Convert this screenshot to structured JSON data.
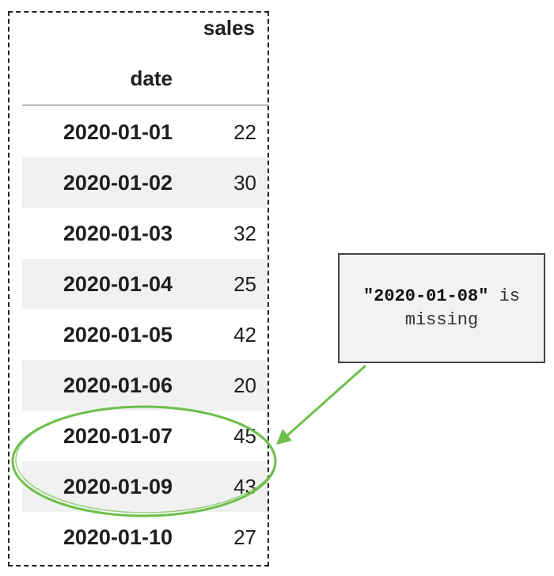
{
  "table": {
    "column_header": "sales",
    "index_header": "date",
    "rows": [
      {
        "date": "2020-01-01",
        "sales": "22"
      },
      {
        "date": "2020-01-02",
        "sales": "30"
      },
      {
        "date": "2020-01-03",
        "sales": "32"
      },
      {
        "date": "2020-01-04",
        "sales": "25"
      },
      {
        "date": "2020-01-05",
        "sales": "42"
      },
      {
        "date": "2020-01-06",
        "sales": "20"
      },
      {
        "date": "2020-01-07",
        "sales": "45"
      },
      {
        "date": "2020-01-09",
        "sales": "43"
      },
      {
        "date": "2020-01-10",
        "sales": "27"
      }
    ]
  },
  "annotation": {
    "quoted_date": "\"2020-01-08\"",
    "line1_suffix": " is",
    "line2": "missing"
  },
  "colors": {
    "highlight": "#6dbf4b",
    "row_stripe": "#f1f1f1",
    "note_bg": "#f2f2f2"
  }
}
